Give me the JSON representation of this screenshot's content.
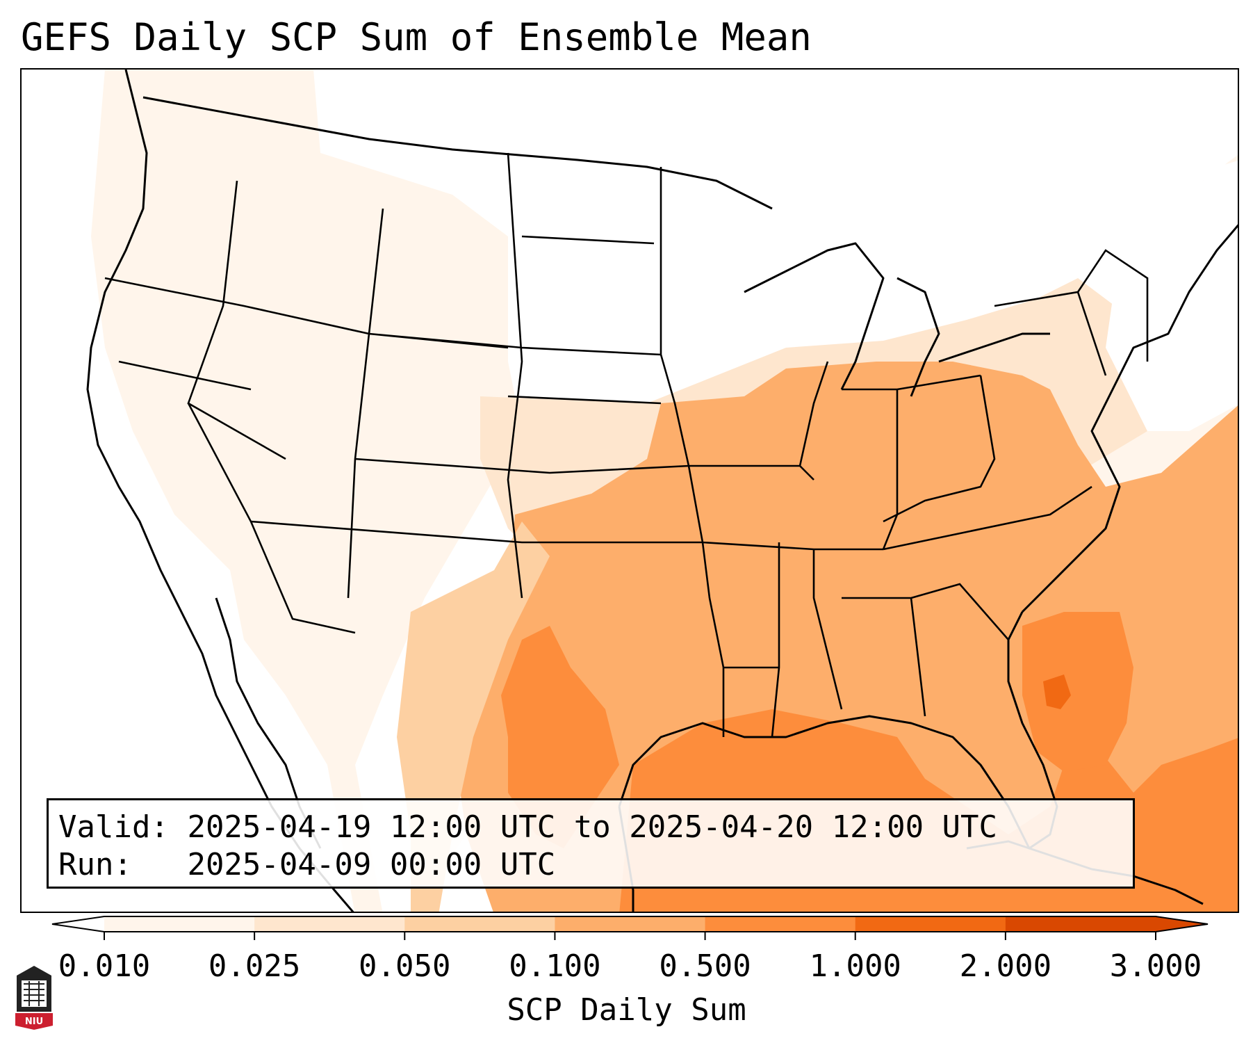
{
  "title": "GEFS Daily SCP Sum of Ensemble Mean",
  "info": {
    "valid_label": "Valid:",
    "valid_value": "2025-04-19 12:00 UTC to 2025-04-20 12:00 UTC",
    "run_label": "Run:",
    "run_value": "2025-04-09 00:00 UTC"
  },
  "colorbar": {
    "label": "SCP Daily Sum",
    "ticks": [
      "0.010",
      "0.025",
      "0.050",
      "0.100",
      "0.500",
      "1.000",
      "2.000",
      "3.000"
    ],
    "colors": [
      "#fff5eb",
      "#fee6ce",
      "#fdd0a2",
      "#fdae6b",
      "#fd8d3c",
      "#f16913",
      "#d94801"
    ],
    "extend": "both"
  },
  "logo": {
    "text": "NIU",
    "icon": "niu-logo-icon"
  },
  "colors": {
    "light": "#fff5eb",
    "pale": "#fee6ce",
    "tan": "#fdd0a2",
    "orange": "#fdae6b",
    "deep": "#fd8d3c",
    "dark": "#f16913"
  }
}
